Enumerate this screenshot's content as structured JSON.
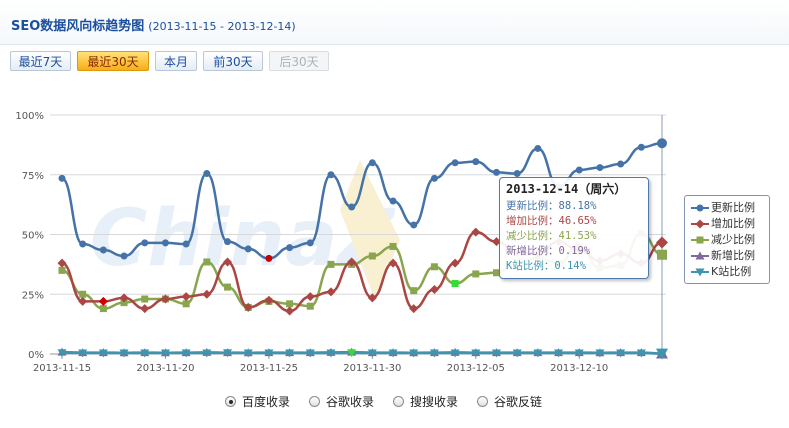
{
  "header": {
    "title": "SEO数据风向标趋势图",
    "range": "(2013-11-15 - 2013-12-14)"
  },
  "buttons": [
    {
      "label": "最近7天",
      "state": "normal"
    },
    {
      "label": "最近30天",
      "state": "active"
    },
    {
      "label": "本月",
      "state": "normal"
    },
    {
      "label": "前30天",
      "state": "normal"
    },
    {
      "label": "后30天",
      "state": "disabled"
    }
  ],
  "tooltip": {
    "title": "2013-12-14（周六）",
    "rows": [
      {
        "label": "更新比例：",
        "value": "88.18%",
        "color": "#4572a7"
      },
      {
        "label": "增加比例：",
        "value": "46.65%",
        "color": "#aa4643"
      },
      {
        "label": "减少比例：",
        "value": "41.53%",
        "color": "#89a54e"
      },
      {
        "label": "新增比例：",
        "value": "0.19%",
        "color": "#80699b"
      },
      {
        "label": "K站比例：",
        "value": "0.14%",
        "color": "#3d96ae"
      }
    ]
  },
  "radios": [
    {
      "label": "百度收录",
      "checked": true
    },
    {
      "label": "谷歌收录",
      "checked": false
    },
    {
      "label": "搜搜收录",
      "checked": false
    },
    {
      "label": "谷歌反链",
      "checked": false
    }
  ],
  "chart_data": {
    "type": "line",
    "title": "",
    "xlabel": "",
    "ylabel": "",
    "ylim": [
      0,
      100
    ],
    "yticks": [
      "0%",
      "25%",
      "50%",
      "75%",
      "100%"
    ],
    "xticks": [
      "2013-11-15",
      "2013-11-20",
      "2013-11-25",
      "2013-11-30",
      "2013-12-05",
      "2013-12-10"
    ],
    "xtick_days": [
      0,
      5,
      10,
      15,
      20,
      25
    ],
    "x": [
      "2013-11-15",
      "2013-11-16",
      "2013-11-17",
      "2013-11-18",
      "2013-11-19",
      "2013-11-20",
      "2013-11-21",
      "2013-11-22",
      "2013-11-23",
      "2013-11-24",
      "2013-11-25",
      "2013-11-26",
      "2013-11-27",
      "2013-11-28",
      "2013-11-29",
      "2013-11-30",
      "2013-12-01",
      "2013-12-02",
      "2013-12-03",
      "2013-12-04",
      "2013-12-05",
      "2013-12-06",
      "2013-12-07",
      "2013-12-08",
      "2013-12-09",
      "2013-12-10",
      "2013-12-11",
      "2013-12-12",
      "2013-12-13",
      "2013-12-14"
    ],
    "grid": true,
    "legend_position": "right",
    "series": [
      {
        "name": "更新比例",
        "color": "#4572a7",
        "marker": "circle",
        "values": [
          73.5,
          46,
          43.5,
          41,
          46.5,
          46.5,
          46,
          75.5,
          47,
          44,
          40,
          44.5,
          46.5,
          75,
          61.5,
          80,
          64,
          54,
          73.5,
          80,
          80.5,
          76,
          75.5,
          86,
          70,
          77,
          78,
          79.5,
          86.5,
          88.18
        ]
      },
      {
        "name": "增加比例",
        "color": "#aa4643",
        "marker": "diamond",
        "values": [
          38,
          22,
          22,
          23.5,
          19,
          23,
          24,
          25,
          38.5,
          19.5,
          22.5,
          18,
          24,
          26,
          38.5,
          23.5,
          38,
          19,
          27,
          38,
          51,
          47,
          42.5,
          42,
          47,
          43.5,
          39,
          42,
          38,
          46.65
        ]
      },
      {
        "name": "减少比例",
        "color": "#89a54e",
        "marker": "square",
        "values": [
          35,
          25,
          19,
          21.5,
          23,
          23,
          21,
          38.5,
          28,
          19.5,
          22,
          21,
          20,
          37.5,
          37.5,
          41,
          45,
          26.5,
          36.5,
          29.5,
          33.5,
          34,
          38.5,
          40,
          38,
          45,
          36,
          37,
          50.5,
          41.53
        ]
      },
      {
        "name": "新增比例",
        "color": "#80699b",
        "marker": "triangle",
        "values": [
          0.8,
          0.6,
          0.6,
          0.5,
          0.6,
          0.5,
          0.6,
          0.7,
          0.6,
          0.5,
          0.6,
          0.6,
          0.6,
          0.7,
          0.8,
          0.6,
          0.6,
          0.5,
          0.6,
          0.7,
          0.6,
          0.6,
          0.6,
          0.6,
          0.6,
          0.6,
          0.5,
          0.6,
          0.6,
          0.19
        ]
      },
      {
        "name": "K站比例",
        "color": "#3d96ae",
        "marker": "triangle-down",
        "values": [
          0.5,
          0.4,
          0.4,
          0.4,
          0.4,
          0.4,
          0.4,
          0.4,
          0.5,
          0.4,
          0.4,
          0.4,
          0.4,
          0.4,
          0.5,
          0.4,
          0.4,
          0.4,
          0.4,
          0.4,
          0.4,
          0.4,
          0.4,
          0.4,
          0.4,
          0.4,
          0.4,
          0.4,
          0.4,
          0.14
        ]
      }
    ],
    "highlighted_points": [
      {
        "series": "增加比例",
        "index": 2,
        "color": "#cc0000"
      },
      {
        "series": "更新比例",
        "index": 10,
        "color": "#cc0000"
      },
      {
        "series": "减少比例",
        "index": 19,
        "color": "#33dd33"
      },
      {
        "series": "K站比例",
        "index": 14,
        "color": "#33dd33"
      }
    ]
  }
}
